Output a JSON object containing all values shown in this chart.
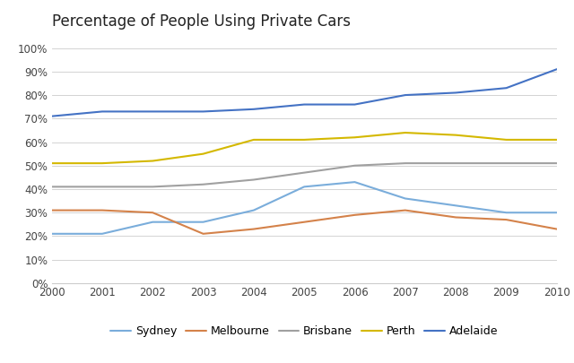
{
  "title": "Percentage of People Using Private Cars",
  "years": [
    2000,
    2001,
    2002,
    2003,
    2004,
    2005,
    2006,
    2007,
    2008,
    2009,
    2010
  ],
  "series": {
    "Sydney": {
      "values": [
        21,
        21,
        26,
        26,
        31,
        41,
        43,
        36,
        33,
        30,
        30
      ],
      "color": "#7aaddb"
    },
    "Melbourne": {
      "values": [
        31,
        31,
        30,
        21,
        23,
        26,
        29,
        31,
        28,
        27,
        23
      ],
      "color": "#d4824a"
    },
    "Brisbane": {
      "values": [
        41,
        41,
        41,
        42,
        44,
        47,
        50,
        51,
        51,
        51,
        51
      ],
      "color": "#a0a0a0"
    },
    "Perth": {
      "values": [
        51,
        51,
        52,
        55,
        61,
        61,
        62,
        64,
        63,
        61,
        61
      ],
      "color": "#d4b800"
    },
    "Adelaide": {
      "values": [
        71,
        73,
        73,
        73,
        74,
        76,
        76,
        80,
        81,
        83,
        91
      ],
      "color": "#4472c4"
    }
  },
  "ylim": [
    0,
    105
  ],
  "yticks": [
    0,
    10,
    20,
    30,
    40,
    50,
    60,
    70,
    80,
    90,
    100
  ],
  "ytick_labels": [
    "0%",
    "10%",
    "20%",
    "30%",
    "40%",
    "50%",
    "60%",
    "70%",
    "80%",
    "90%",
    "100%"
  ],
  "background_color": "#ffffff",
  "legend_order": [
    "Sydney",
    "Melbourne",
    "Brisbane",
    "Perth",
    "Adelaide"
  ]
}
